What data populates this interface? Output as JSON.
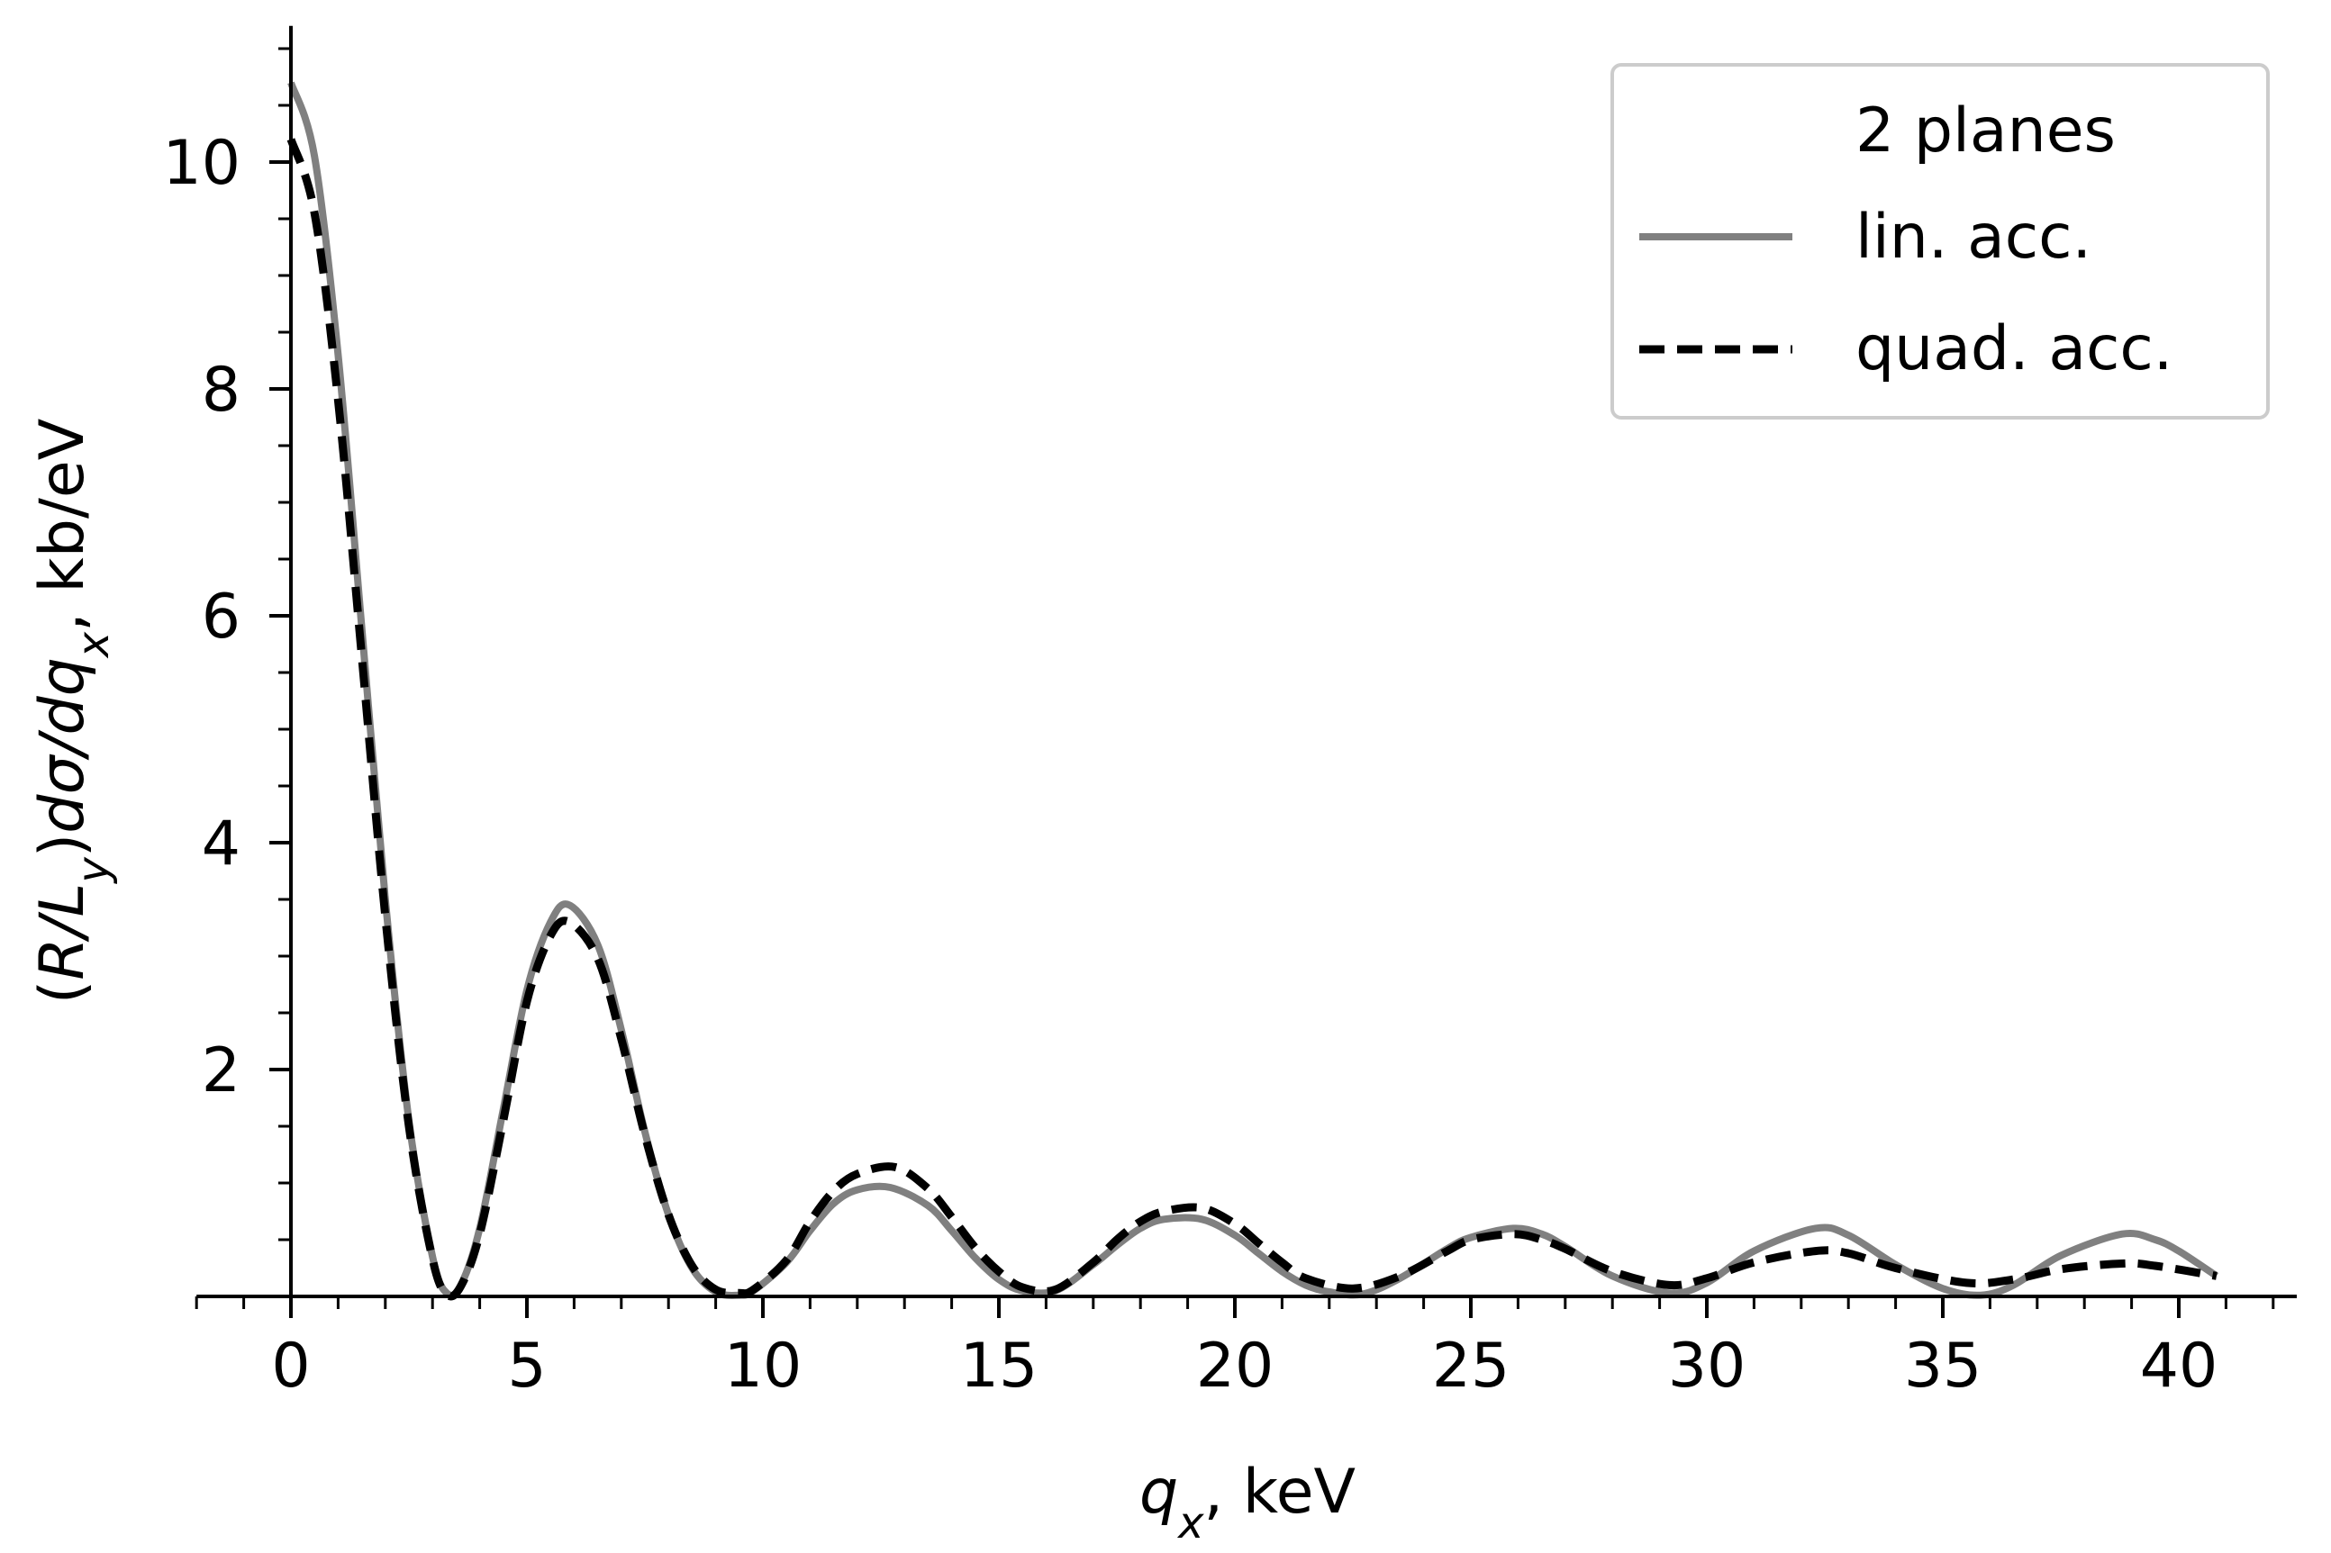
{
  "chart_data": {
    "type": "line",
    "xlabel": {
      "var": "q",
      "sub": "x",
      "unit": ", keV"
    },
    "ylabel": {
      "text": "(R/L",
      "sub": "y",
      "rest": ")dσ/dq",
      "sub2": "x",
      "unit": ", kb/eV"
    },
    "xlim": [
      -2,
      42.5
    ],
    "ylim": [
      0,
      11.2
    ],
    "xticks": [
      "0",
      "5",
      "10",
      "15",
      "20",
      "25",
      "30",
      "35",
      "40"
    ],
    "yticks": [
      "2",
      "4",
      "6",
      "8",
      "10"
    ],
    "legend": {
      "title": "2 planes",
      "placement": "top-right"
    },
    "series": [
      {
        "name": "lin. acc.",
        "color": "#808080",
        "style": "solid",
        "x": [
          0,
          0.5,
          1,
          1.5,
          2,
          2.5,
          3,
          3.3,
          3.6,
          4,
          4.5,
          5,
          5.5,
          5.9,
          6.5,
          7,
          7.5,
          8,
          8.5,
          9,
          9.5,
          9.8,
          10.5,
          11,
          11.5,
          12,
          12.7,
          13.5,
          14,
          14.5,
          15,
          15.5,
          16.2,
          17,
          17.5,
          18,
          18.5,
          19.3,
          20,
          20.5,
          21,
          21.5,
          22,
          22.7,
          23.5,
          24.5,
          25,
          25.9,
          26.5,
          27,
          28,
          29.2,
          30,
          31,
          32.3,
          33,
          34,
          35,
          35.8,
          36.5,
          37.5,
          38.8,
          39.5,
          40,
          40.8
        ],
        "y": [
          10.7,
          10.05,
          8.3,
          5.9,
          3.5,
          1.55,
          0.35,
          0.03,
          0.1,
          0.6,
          1.65,
          2.7,
          3.3,
          3.45,
          3.1,
          2.35,
          1.45,
          0.72,
          0.25,
          0.04,
          0.01,
          0.05,
          0.3,
          0.58,
          0.82,
          0.94,
          0.96,
          0.8,
          0.58,
          0.34,
          0.15,
          0.05,
          0.05,
          0.28,
          0.45,
          0.6,
          0.68,
          0.68,
          0.54,
          0.38,
          0.22,
          0.1,
          0.04,
          0.02,
          0.16,
          0.42,
          0.52,
          0.6,
          0.55,
          0.44,
          0.18,
          0.03,
          0.12,
          0.4,
          0.6,
          0.54,
          0.28,
          0.07,
          0.01,
          0.1,
          0.36,
          0.55,
          0.5,
          0.4,
          0.18
        ]
      },
      {
        "name": "quad. acc.",
        "color": "#000000",
        "style": "dashed",
        "x": [
          0,
          0.5,
          1,
          1.5,
          2,
          2.5,
          3,
          3.3,
          3.6,
          4,
          4.5,
          5,
          5.5,
          5.9,
          6.5,
          7,
          7.5,
          8,
          8.5,
          9,
          9.5,
          9.8,
          10.5,
          11,
          11.5,
          12,
          12.8,
          13.5,
          14,
          14.5,
          15,
          15.5,
          16.2,
          17,
          17.5,
          18,
          18.5,
          19.3,
          20,
          20.5,
          21,
          21.5,
          22.5,
          23.5,
          24.5,
          25,
          25.9,
          26.5,
          27,
          28,
          29.2,
          30,
          31,
          32.3,
          33,
          34,
          35.5,
          36.5,
          37.5,
          38.8,
          39.5,
          40.8
        ],
        "y": [
          10.2,
          9.55,
          7.9,
          5.65,
          3.35,
          1.5,
          0.33,
          0.02,
          0.09,
          0.55,
          1.55,
          2.6,
          3.18,
          3.3,
          2.98,
          2.27,
          1.42,
          0.72,
          0.27,
          0.06,
          0.03,
          0.06,
          0.32,
          0.66,
          0.93,
          1.08,
          1.14,
          0.95,
          0.7,
          0.43,
          0.22,
          0.08,
          0.06,
          0.3,
          0.5,
          0.66,
          0.75,
          0.78,
          0.64,
          0.47,
          0.3,
          0.16,
          0.07,
          0.18,
          0.4,
          0.5,
          0.55,
          0.5,
          0.42,
          0.22,
          0.1,
          0.16,
          0.3,
          0.4,
          0.38,
          0.25,
          0.12,
          0.15,
          0.24,
          0.29,
          0.27,
          0.18
        ]
      }
    ]
  }
}
